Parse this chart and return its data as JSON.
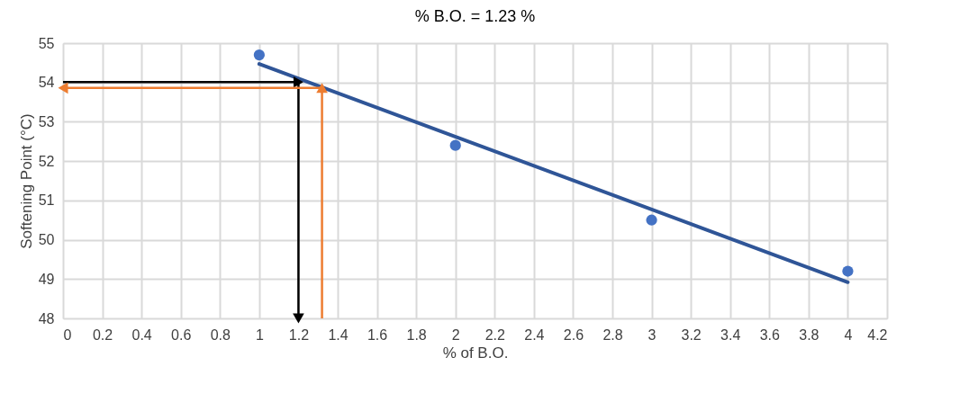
{
  "chart_data": {
    "type": "scatter",
    "title": "% B.O. = 1.23 %",
    "xlabel": "% of B.O.",
    "ylabel": "Softening Point (°C)",
    "xlim": [
      0,
      4.2
    ],
    "xticks": [
      0,
      0.2,
      0.4,
      0.6,
      0.8,
      1,
      1.2,
      1.4,
      1.6,
      1.8,
      2,
      2.2,
      2.4,
      2.6,
      2.8,
      3,
      3.2,
      3.4,
      3.6,
      3.8,
      4,
      4.2
    ],
    "ylim": [
      48,
      55
    ],
    "yticks": [
      48,
      49,
      50,
      51,
      52,
      53,
      54,
      55
    ],
    "grid": true,
    "series": [
      {
        "color": "#4472c4",
        "marker": "circle",
        "x": [
          1,
          2,
          3,
          4
        ],
        "values": [
          54.7,
          52.4,
          50.5,
          49.2
        ]
      },
      {
        "type": "line",
        "color": "#2f5597",
        "marker": "none",
        "line_style": "solid",
        "x": [
          1,
          4
        ],
        "values": [
          54.47,
          48.92
        ]
      },
      {
        "type": "line",
        "color": "#000000",
        "marker": "triangle",
        "x": [
          0,
          1.2
        ],
        "values": [
          54.01,
          54.01
        ]
      },
      {
        "type": "line",
        "color": "#000000",
        "marker": "triangle",
        "x": [
          1.2,
          1.2
        ],
        "values": [
          54.01,
          48
        ]
      },
      {
        "type": "line",
        "color": "#ed7d31",
        "marker": "triangle",
        "x": [
          1.32,
          1.32
        ],
        "values": [
          48,
          53.86
        ]
      },
      {
        "type": "line",
        "color": "#ed7d31",
        "marker": "triangle",
        "x": [
          1.32,
          0
        ],
        "values": [
          53.86,
          53.86
        ]
      }
    ]
  }
}
